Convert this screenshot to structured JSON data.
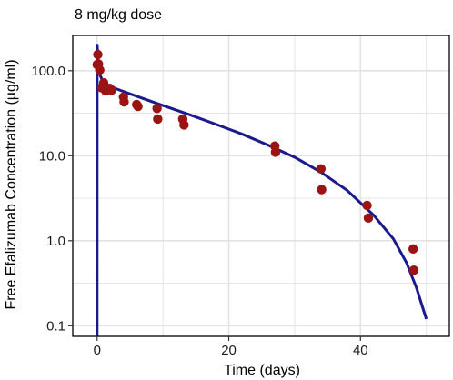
{
  "chart_data": {
    "type": "scatter",
    "title": "8 mg/kg dose",
    "xlabel": "Time (days)",
    "ylabel": "Free Efalizumab Concentration (µg/ml)",
    "y_scale": "log",
    "xlim": [
      -3.7,
      53.5
    ],
    "ylim": [
      0.075,
      260
    ],
    "x_ticks": [
      0,
      20,
      40
    ],
    "x_tick_labels": [
      "0",
      "20",
      "40"
    ],
    "y_ticks": [
      0.1,
      1,
      10,
      100
    ],
    "y_tick_labels": [
      "0.1",
      "1.0",
      "10.0",
      "100.0"
    ],
    "grid": true,
    "legend": "none",
    "colors": {
      "points": "#9b1414",
      "line": "#1a1a8c",
      "grid": "#e3e3e3",
      "panel_border": "#000000"
    },
    "series": [
      {
        "type": "scatter",
        "x": [
          0,
          0.1,
          0.2,
          0.4,
          0.7,
          1.0,
          1.3,
          1.9,
          2.2,
          4,
          4.1,
          6,
          6.2,
          9.1,
          9.2,
          13,
          13.2,
          27,
          27.1,
          34,
          34.1,
          41,
          41.2,
          48,
          48.1
        ],
        "y": [
          118,
          155,
          120,
          102,
          63,
          72,
          58,
          62,
          59,
          49,
          43,
          40,
          38,
          36,
          27,
          27,
          23,
          13,
          11,
          7,
          4,
          2.6,
          1.85,
          0.8,
          0.45
        ]
      },
      {
        "type": "line",
        "x": [
          0,
          0.01,
          0.3,
          1,
          2,
          4,
          7,
          10,
          14,
          18,
          22,
          26,
          30,
          34,
          38,
          42,
          45,
          47,
          48.5,
          50
        ],
        "y": [
          0.075,
          200,
          95,
          70,
          65,
          57,
          47,
          39,
          30.5,
          23.5,
          18,
          13.3,
          9.6,
          6.4,
          3.9,
          2.0,
          1.05,
          0.55,
          0.28,
          0.12
        ]
      }
    ]
  }
}
